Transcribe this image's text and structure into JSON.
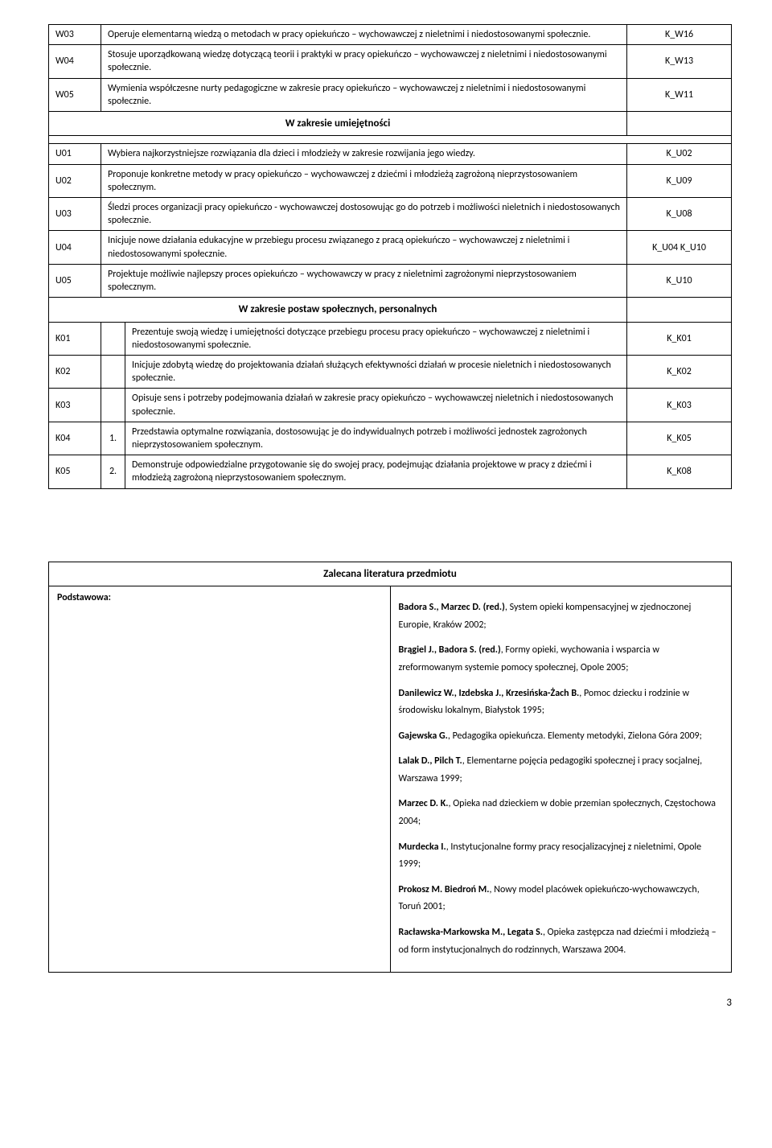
{
  "rows_a": [
    {
      "code": "W03",
      "desc": "Operuje elementarną wiedzą o metodach w pracy opiekuńczo – wychowawczej z nieletnimi i niedostosowanymi społecznie.",
      "k": "K_W16"
    },
    {
      "code": "W04",
      "desc": "Stosuje uporządkowaną wiedzę dotyczącą teorii i praktyki w pracy opiekuńczo – wychowawczej z nieletnimi i niedostosowanymi społecznie.",
      "k": "K_W13"
    },
    {
      "code": "W05",
      "desc": "Wymienia współczesne nurty pedagogiczne w zakresie pracy opiekuńczo – wychowawczej z nieletnimi i niedostosowanymi społecznie.",
      "k": "K_W11"
    }
  ],
  "section_u_title": "W zakresie umiejętności",
  "rows_u": [
    {
      "code": "U01",
      "desc": "Wybiera najkorzystniejsze rozwiązania dla dzieci i młodzieży w zakresie rozwijania jego wiedzy.",
      "k": "K_U02"
    },
    {
      "code": "U02",
      "desc": "Proponuje konkretne metody w pracy opiekuńczo – wychowawczej z dziećmi i młodzieżą zagrożoną nieprzystosowaniem społecznym.",
      "k": "K_U09"
    },
    {
      "code": "U03",
      "desc": "Śledzi proces organizacji pracy opiekuńczo - wychowawczej dostosowując go do potrzeb i możliwości nieletnich i niedostosowanych społecznie.",
      "k": "K_U08"
    },
    {
      "code": "U04",
      "desc": "Inicjuje nowe działania edukacyjne w przebiegu procesu związanego z pracą opiekuńczo – wychowawczej z nieletnimi i niedostosowanymi społecznie.",
      "k": "K_U04   K_U10"
    },
    {
      "code": "U05",
      "desc": "Projektuje możliwie najlepszy proces opiekuńczo – wychowawczy w pracy z nieletnimi zagrożonymi nieprzystosowaniem społecznym.",
      "k": "K_U10"
    }
  ],
  "section_k_title": "W zakresie postaw społecznych, personalnych",
  "rows_k": [
    {
      "code": "K01",
      "sub": "",
      "desc": "Prezentuje swoją wiedzę i umiejętności dotyczące przebiegu procesu pracy opiekuńczo – wychowawczej z nieletnimi i niedostosowanymi społecznie.",
      "k": "K_K01"
    },
    {
      "code": "K02",
      "sub": "",
      "desc": "Inicjuje zdobytą wiedzę do projektowania działań służących efektywności działań w procesie nieletnich i niedostosowanych społecznie.",
      "k": "K_K02"
    },
    {
      "code": "K03",
      "sub": "",
      "desc": "Opisuje sens i potrzeby podejmowania działań w zakresie pracy opiekuńczo – wychowawczej nieletnich i niedostosowanych społecznie.",
      "k": "K_K03"
    },
    {
      "code": "K04",
      "sub": "1.",
      "desc": "Przedstawia optymalne rozwiązania, dostosowując je do indywidualnych potrzeb i możliwości jednostek zagrożonych nieprzystosowaniem społecznym.",
      "k": "K_K05"
    },
    {
      "code": "K05",
      "sub": "2.",
      "desc": "Demonstruje odpowiedzialne przygotowanie się do swojej pracy, podejmując działania projektowe w pracy z dziećmi i młodzieżą zagrożoną nieprzystosowaniem społecznym.",
      "k": "K_K08"
    }
  ],
  "lit_title": "Zalecana literatura przedmiotu",
  "lit_left": "Podstawowa:",
  "lit_items": [
    {
      "b": "Badora S., Marzec D. (red.)",
      "rest": ", System opieki kompensacyjnej w zjednoczonej Europie, Kraków 2002;"
    },
    {
      "b": "Brągiel J., Badora S. (red.)",
      "rest": ", Formy opieki, wychowania i wsparcia w zreformowanym systemie pomocy społecznej, Opole 2005;"
    },
    {
      "b": "Danilewicz W., Izdebska J., Krzesińska-Żach B.",
      "rest": ", Pomoc dziecku i rodzinie w środowisku lokalnym, Białystok 1995;"
    },
    {
      "b": "Gajewska G.",
      "rest": ", Pedagogika opiekuńcza. Elementy metodyki, Zielona Góra 2009;"
    },
    {
      "b": "Lalak D., Pilch T.",
      "rest": ", Elementarne pojęcia pedagogiki społecznej i pracy socjalnej, Warszawa 1999;"
    },
    {
      "b": "Marzec D. K.",
      "rest": ", Opieka nad dzieckiem w dobie przemian społecznych, Częstochowa 2004;"
    },
    {
      "b": "Murdecka I.",
      "rest": ", Instytucjonalne formy pracy resocjalizacyjnej z nieletnimi, Opole 1999;"
    },
    {
      "b": "Prokosz M. Biedroń M.",
      "rest": ", Nowy model placówek opiekuńczo-wychowawczych, Toruń 2001;"
    },
    {
      "b": "Racławska-Markowska M., Legata S.",
      "rest": ", Opieka zastępcza nad dziećmi i młodzieżą – od form instytucjonalnych do rodzinnych, Warszawa 2004."
    }
  ],
  "page_number": "3"
}
